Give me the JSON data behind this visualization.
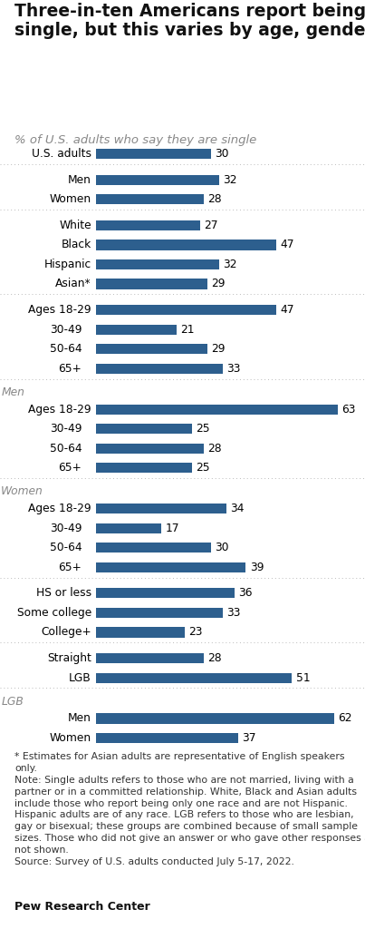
{
  "title": "Three-in-ten Americans report being\nsingle, but this varies by age, gender",
  "subtitle": "% of U.S. adults who say they are single",
  "bar_color": "#2d5f8e",
  "background_color": "#ffffff",
  "groups": [
    {
      "section_label": null,
      "rows": [
        {
          "label": "U.S. adults",
          "value": 30,
          "indent": 0
        }
      ],
      "divider_after": true
    },
    {
      "section_label": null,
      "rows": [
        {
          "label": "Men",
          "value": 32,
          "indent": 1
        },
        {
          "label": "Women",
          "value": 28,
          "indent": 1
        }
      ],
      "divider_after": true
    },
    {
      "section_label": null,
      "rows": [
        {
          "label": "White",
          "value": 27,
          "indent": 1
        },
        {
          "label": "Black",
          "value": 47,
          "indent": 1
        },
        {
          "label": "Hispanic",
          "value": 32,
          "indent": 1
        },
        {
          "label": "Asian*",
          "value": 29,
          "indent": 1
        }
      ],
      "divider_after": true
    },
    {
      "section_label": null,
      "rows": [
        {
          "label": "Ages 18-29",
          "value": 47,
          "indent": 1
        },
        {
          "label": "30-49",
          "value": 21,
          "indent": 2
        },
        {
          "label": "50-64",
          "value": 29,
          "indent": 2
        },
        {
          "label": "65+",
          "value": 33,
          "indent": 2
        }
      ],
      "divider_after": true
    },
    {
      "section_label": "Men",
      "rows": [
        {
          "label": "Ages 18-29",
          "value": 63,
          "indent": 1
        },
        {
          "label": "30-49",
          "value": 25,
          "indent": 2
        },
        {
          "label": "50-64",
          "value": 28,
          "indent": 2
        },
        {
          "label": "65+",
          "value": 25,
          "indent": 2
        }
      ],
      "divider_after": true
    },
    {
      "section_label": "Women",
      "rows": [
        {
          "label": "Ages 18-29",
          "value": 34,
          "indent": 1
        },
        {
          "label": "30-49",
          "value": 17,
          "indent": 2
        },
        {
          "label": "50-64",
          "value": 30,
          "indent": 2
        },
        {
          "label": "65+",
          "value": 39,
          "indent": 2
        }
      ],
      "divider_after": true
    },
    {
      "section_label": null,
      "rows": [
        {
          "label": "HS or less",
          "value": 36,
          "indent": 1
        },
        {
          "label": "Some college",
          "value": 33,
          "indent": 1
        },
        {
          "label": "College+",
          "value": 23,
          "indent": 1
        }
      ],
      "divider_after": true
    },
    {
      "section_label": null,
      "rows": [
        {
          "label": "Straight",
          "value": 28,
          "indent": 1
        },
        {
          "label": "LGB",
          "value": 51,
          "indent": 1
        }
      ],
      "divider_after": true
    },
    {
      "section_label": "LGB",
      "rows": [
        {
          "label": "Men",
          "value": 62,
          "indent": 1
        },
        {
          "label": "Women",
          "value": 37,
          "indent": 1
        }
      ],
      "divider_after": false
    }
  ],
  "footnote_lines": [
    "* Estimates for Asian adults are representative of English speakers only.",
    "Note: Single adults refers to those who are not married, living with a partner or in a committed relationship. White, Black and Asian adults include those who report being only one race and are not Hispanic. Hispanic adults are of any race. LGB refers to those who are lesbian, gay or bisexual; these groups are combined because of small sample sizes. Those who did not give an answer or who gave other responses are not shown.",
    "Source: Survey of U.S. adults conducted July 5-17, 2022."
  ],
  "source_line": "Pew Research Center",
  "bar_max": 70,
  "title_fontsize": 13.5,
  "subtitle_fontsize": 9.5,
  "label_fontsize": 8.8,
  "value_fontsize": 8.8,
  "footnote_fontsize": 7.8,
  "source_fontsize": 9,
  "section_label_fontsize": 8.8
}
